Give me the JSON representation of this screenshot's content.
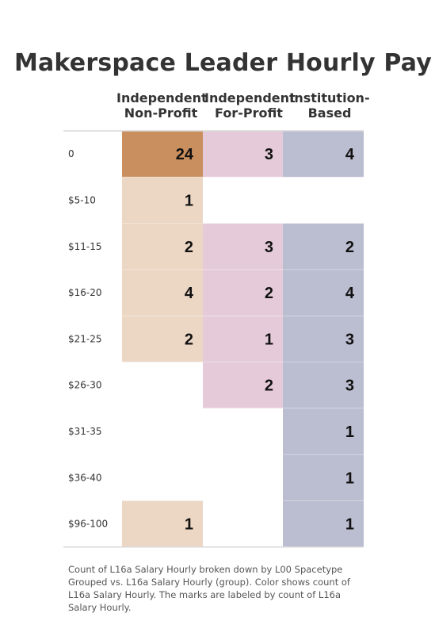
{
  "chart_data": {
    "type": "heatmap",
    "title": "Makerspace Leader Hourly Pay",
    "columns": [
      "Independent Non-Profit",
      "Independent For-Profit",
      "Institution-Based"
    ],
    "column_header_lines": [
      [
        "Independent",
        "Non-Profit"
      ],
      [
        "Independent",
        "For-Profit"
      ],
      [
        "Institution-",
        "Based"
      ]
    ],
    "rows": [
      "0",
      "$5-10",
      "$11-15",
      "$16-20",
      "$21-25",
      "$26-30",
      "$31-35",
      "$36-40",
      "$96-100"
    ],
    "values": [
      [
        24,
        3,
        4
      ],
      [
        1,
        null,
        null
      ],
      [
        2,
        3,
        2
      ],
      [
        4,
        2,
        4
      ],
      [
        2,
        1,
        3
      ],
      [
        null,
        2,
        3
      ],
      [
        null,
        null,
        1
      ],
      [
        null,
        null,
        1
      ],
      [
        1,
        null,
        1
      ]
    ],
    "max_colors": [
      "#c98f5e",
      "#e5cbda",
      "#bbbdd0"
    ],
    "light_colors": [
      "#ecd6c4",
      "#e5cbda",
      "#bbbdd0"
    ]
  },
  "caption": "Count of L16a Salary Hourly broken down by L00 Spacetype Grouped vs. L16a Salary Hourly (group).  Color shows count of L16a Salary Hourly.  The marks are labeled by count of L16a Salary Hourly."
}
